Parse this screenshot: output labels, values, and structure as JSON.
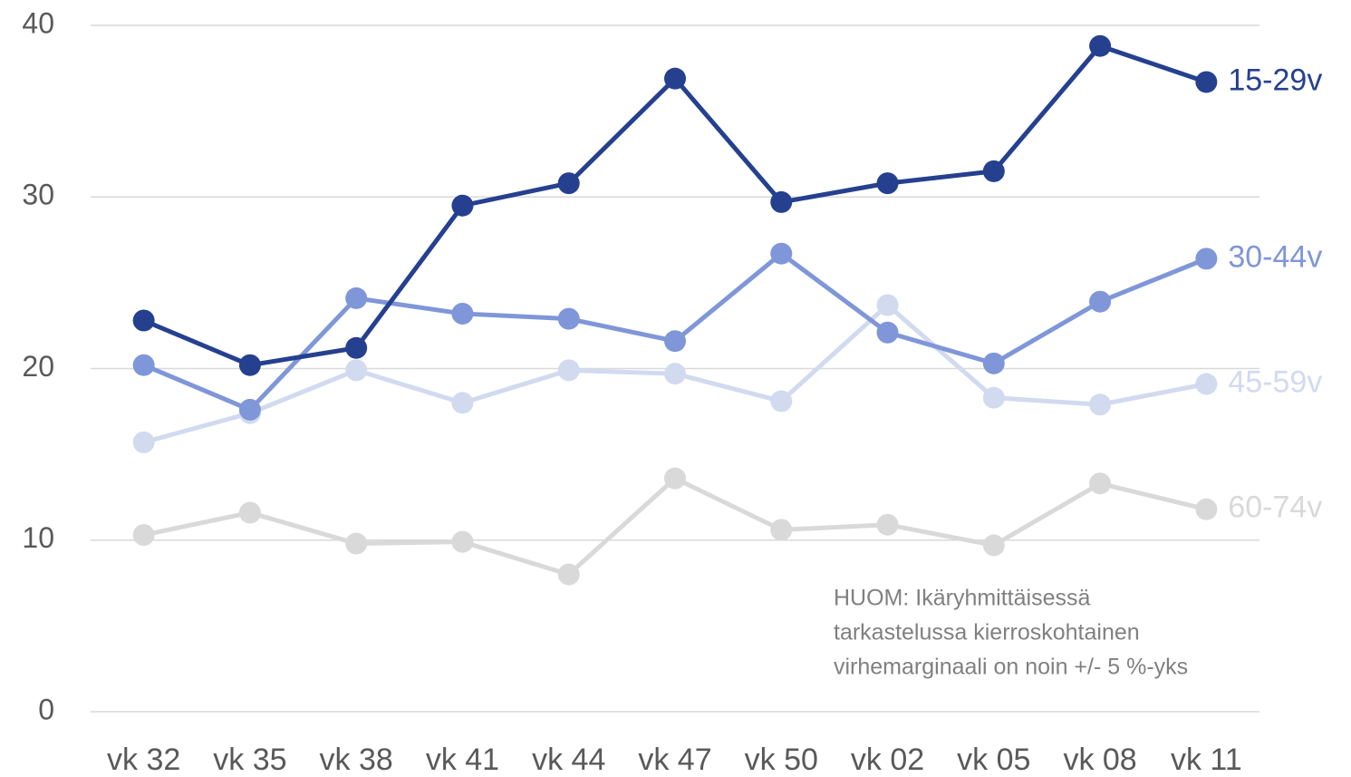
{
  "chart_data": {
    "type": "line",
    "categories": [
      "vk 32",
      "vk 35",
      "vk 38",
      "vk 41",
      "vk 44",
      "vk 47",
      "vk 50",
      "vk 02",
      "vk 05",
      "vk 08",
      "vk 11"
    ],
    "series": [
      {
        "name": "15-29v",
        "color": "#25408f",
        "values": [
          22.8,
          20.2,
          21.2,
          29.5,
          30.8,
          36.9,
          29.7,
          30.8,
          31.5,
          38.8,
          36.7
        ]
      },
      {
        "name": "30-44v",
        "color": "#7f96d8",
        "values": [
          20.2,
          17.6,
          24.1,
          23.2,
          22.9,
          21.6,
          26.7,
          22.1,
          20.3,
          23.9,
          26.4
        ]
      },
      {
        "name": "45-59v",
        "color": "#d2daf0",
        "values": [
          15.7,
          17.4,
          19.9,
          18.0,
          19.9,
          19.7,
          18.1,
          23.7,
          18.3,
          17.9,
          19.1
        ]
      },
      {
        "name": "60-74v",
        "color": "#d9d9d9",
        "values": [
          10.3,
          11.6,
          9.8,
          9.9,
          8.0,
          13.6,
          10.6,
          10.9,
          9.7,
          13.3,
          11.8
        ]
      }
    ],
    "ylim": [
      0,
      40
    ],
    "yticks": [
      0,
      10,
      20,
      30,
      40
    ],
    "grid": true,
    "annotation": [
      "HUOM: Ikäryhmittäisessä",
      "tarkastelussa kierroskohtainen",
      "virhemarginaali on noin +/- 5 %-yks"
    ]
  }
}
